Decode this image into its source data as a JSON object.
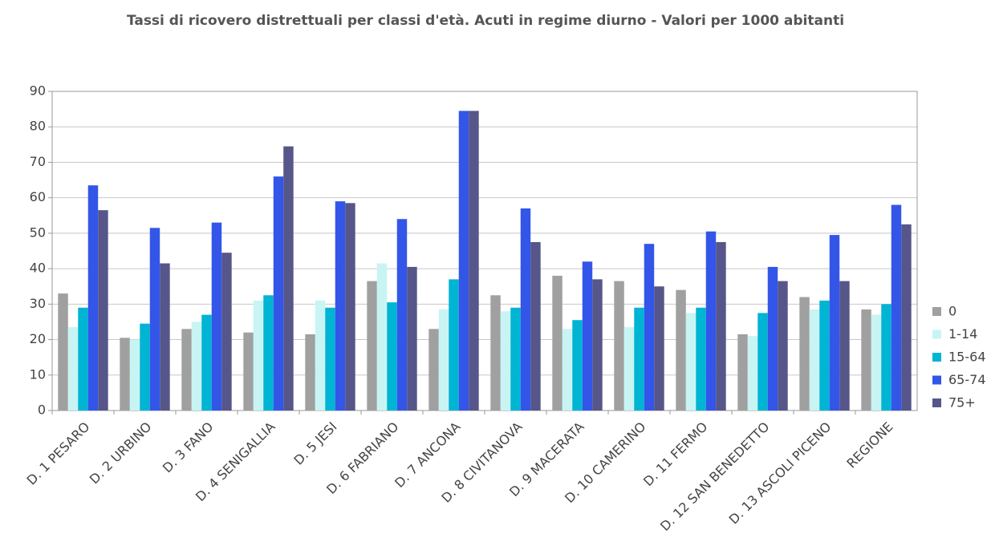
{
  "chart_data": {
    "type": "bar",
    "title": "Tassi di ricovero distrettuali per classi d'età. Acuti in regime diurno - Valori per 1000 abitanti",
    "categories": [
      "D. 1 PESARO",
      "D. 2 URBINO",
      "D. 3 FANO",
      "D. 4 SENIGALLIA",
      "D. 5 JESI",
      "D. 6 FABRIANO",
      "D. 7 ANCONA",
      "D. 8 CIVITANOVA",
      "D. 9 MACERATA",
      "D. 10 CAMERINO",
      "D. 11 FERMO",
      "D. 12 SAN BENEDETTO",
      "D. 13 ASCOLI PICENO",
      "REGIONE"
    ],
    "series": [
      {
        "name": "0",
        "color": "#a0a0a0",
        "values": [
          33,
          20.5,
          23,
          22,
          21.5,
          36.5,
          23,
          32.5,
          38,
          36.5,
          34,
          21.5,
          32,
          28.5
        ]
      },
      {
        "name": "1-14",
        "color": "#c8f4f4",
        "values": [
          23.5,
          20,
          25,
          31,
          31,
          41.5,
          28.5,
          28,
          23,
          23.5,
          27.5,
          21,
          28.5,
          27
        ]
      },
      {
        "name": "15-64",
        "color": "#00b4d4",
        "values": [
          29,
          24.5,
          27,
          32.5,
          29,
          30.5,
          37,
          29,
          25.5,
          29,
          29,
          27.5,
          31,
          30
        ]
      },
      {
        "name": "65-74",
        "color": "#3356e8",
        "values": [
          63.5,
          51.5,
          53,
          66,
          59,
          54,
          84.5,
          57,
          42,
          47,
          50.5,
          40.5,
          49.5,
          58
        ]
      },
      {
        "name": "75+",
        "color": "#56568a",
        "values": [
          56.5,
          41.5,
          44.5,
          74.5,
          58.5,
          40.5,
          84.5,
          47.5,
          37,
          35,
          47.5,
          36.5,
          36.5,
          52.5
        ]
      }
    ],
    "ylim": [
      0,
      90
    ],
    "yticks": [
      0,
      10,
      20,
      30,
      40,
      50,
      60,
      70,
      80,
      90
    ],
    "grid": true,
    "legend": "right"
  }
}
